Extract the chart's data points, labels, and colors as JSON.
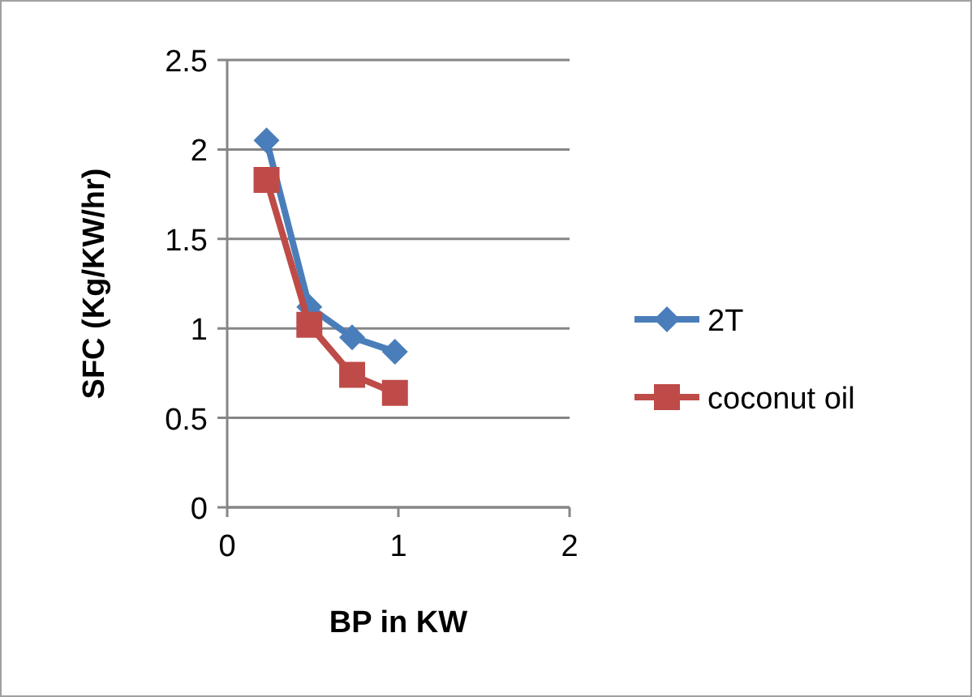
{
  "chart_data": {
    "type": "line",
    "xlabel": "BP in KW",
    "ylabel": "SFC (Kg/KW/hr)",
    "xlim": [
      0,
      2
    ],
    "xticks": [
      0,
      1,
      2
    ],
    "ylim": [
      0,
      2.5
    ],
    "yticks": [
      0,
      0.5,
      1,
      1.5,
      2,
      2.5
    ],
    "grid": "y",
    "legend": "right",
    "series": [
      {
        "name": "2T",
        "color": "#4a7ebb",
        "marker": "diamond",
        "x": [
          0.23,
          0.48,
          0.73,
          0.98
        ],
        "values": [
          2.05,
          1.12,
          0.95,
          0.87
        ]
      },
      {
        "name": "coconut oil",
        "color": "#be4b48",
        "marker": "square",
        "x": [
          0.23,
          0.48,
          0.73,
          0.98
        ],
        "values": [
          1.83,
          1.02,
          0.74,
          0.64
        ]
      }
    ]
  }
}
